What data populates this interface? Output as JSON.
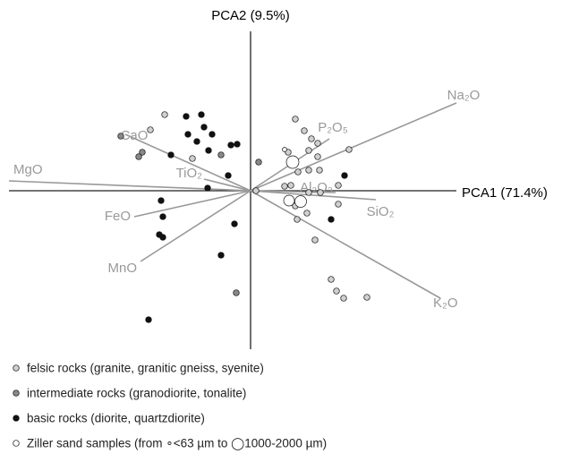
{
  "chart_data": {
    "type": "scatter",
    "x_label": "PCA1 (71.4%)",
    "y_label": "PCA2 (9.5%)",
    "xlim": [
      -27,
      23
    ],
    "ylim": [
      -17.7,
      17.8
    ],
    "series": [
      {
        "name": "felsic rocks (granite, granitic gneiss, syenite)",
        "color": "#d0d0d0",
        "x": [
          -9.6,
          -11.2,
          5,
          6,
          6.8,
          7.5,
          6.5,
          4.2,
          7.5,
          6.5,
          5.3,
          3.8,
          4.5,
          6.5,
          7.8,
          7.7,
          9.8,
          9.8,
          5,
          6.3,
          5.2,
          7.2,
          9,
          9.6,
          10.4,
          13,
          11,
          0.6,
          -6.5
        ],
        "y": [
          8.5,
          6.8,
          8,
          6.7,
          5.8,
          5.3,
          4.5,
          4.3,
          3.8,
          2.3,
          2.1,
          0.5,
          0.6,
          -0.2,
          -0.2,
          2.3,
          0.6,
          -1.5,
          -1.7,
          -2.5,
          -3.2,
          -5.5,
          -9.9,
          -11.2,
          -12,
          -11.9,
          4.6,
          0,
          3.6
        ]
      },
      {
        "name": "intermediate rocks (granodiorite, tonalite)",
        "color": "#888888",
        "x": [
          -14.5,
          -12.1,
          -12.5,
          0.9,
          -1.6,
          -3.3
        ],
        "y": [
          6.1,
          4.3,
          3.8,
          3.2,
          -11.4,
          4
        ]
      },
      {
        "name": "basic rocks (diorite, quartzdiorite)",
        "color": "#111111",
        "x": [
          -7.2,
          -5.5,
          -5.2,
          -7,
          -4.3,
          -6,
          -4.7,
          -2.2,
          -1.5,
          -8.9,
          -2.5,
          -4.8,
          4.8,
          10.5,
          9,
          -10,
          -9.8,
          -10.2,
          -9.8,
          -1.8,
          -3.3,
          -11.4
        ],
        "y": [
          8.3,
          8.5,
          7.1,
          6.3,
          6.3,
          5.5,
          4.5,
          5.1,
          5.2,
          4,
          1.7,
          0.3,
          3.3,
          1.7,
          -3.2,
          -1.1,
          -2.9,
          -4.9,
          -5.2,
          -3.7,
          -7.2,
          -14.4
        ]
      },
      {
        "name": "Ziller sand samples (from ∘<63 µm to ◯1000-2000 µm)",
        "color": "#ffffff",
        "x": [
          3.8,
          4.7,
          4.3,
          5.6
        ],
        "y": [
          4.6,
          3.2,
          -1.1,
          -1.2
        ],
        "sizes": [
          2.5,
          7,
          6,
          6.5
        ]
      }
    ],
    "loadings": [
      {
        "name": "Na₂O",
        "x": 23,
        "y": 9.8
      },
      {
        "name": "P₂O₅",
        "x": 8.8,
        "y": 5.8
      },
      {
        "name": "Al₂O₃",
        "x": 9.5,
        "y": -0.2
      },
      {
        "name": "SiO₂",
        "x": 14,
        "y": -1.0
      },
      {
        "name": "K₂O",
        "x": 21.2,
        "y": -12
      },
      {
        "name": "MnO",
        "x": -12.3,
        "y": -7.9
      },
      {
        "name": "FeO",
        "x": -13,
        "y": -2.9
      },
      {
        "name": "MgO",
        "x": -27,
        "y": 1.1
      },
      {
        "name": "TiO₂",
        "x": -5.2,
        "y": 1.3
      },
      {
        "name": "CaO",
        "x": -14,
        "y": 6.3
      }
    ]
  }
}
